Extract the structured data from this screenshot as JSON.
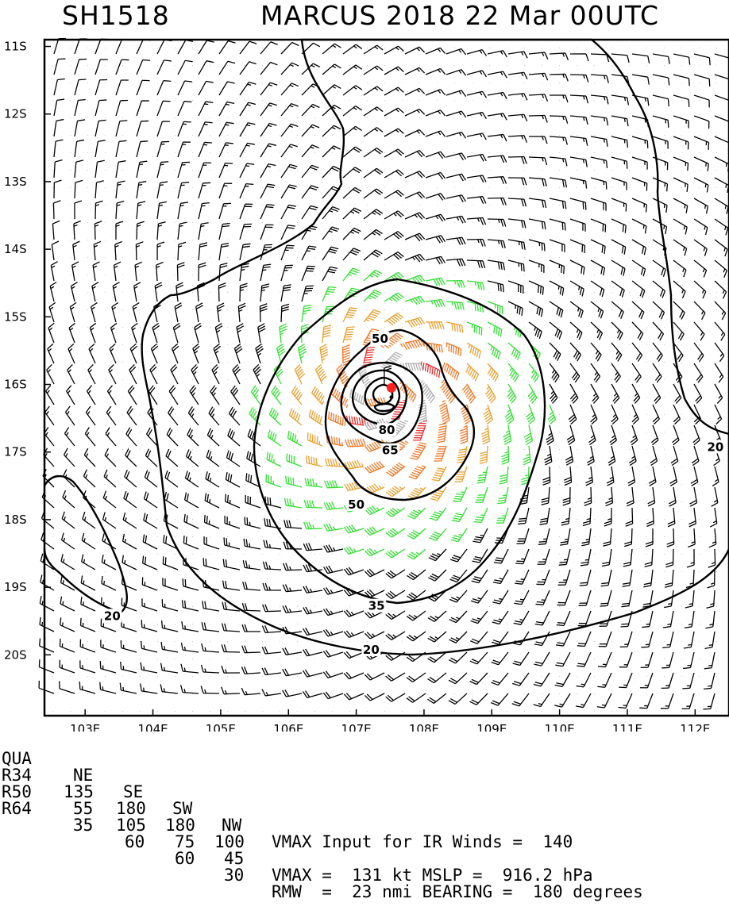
{
  "title": {
    "storm_id": "SH1518",
    "main": "MARCUS 2018 22 Mar 00UTC"
  },
  "map": {
    "lon_min": 102.4,
    "lon_max": 112.5,
    "lat_top": -10.9,
    "lat_bottom": -20.9,
    "lon_ticks": [
      "103E",
      "104E",
      "105E",
      "106E",
      "107E",
      "108E",
      "109E",
      "110E",
      "111E",
      "112E"
    ],
    "lat_ticks": [
      "11S",
      "12S",
      "13S",
      "14S",
      "15S",
      "16S",
      "17S",
      "18S",
      "19S",
      "20S"
    ],
    "center": {
      "lon": 107.52,
      "lat": -16.05
    },
    "center_marker_color": "#ff2020",
    "contour_labels": [
      {
        "text": "20",
        "lon": 112.3,
        "lat": -16.95
      },
      {
        "text": "20",
        "lon": 103.4,
        "lat": -19.45
      },
      {
        "text": "20",
        "lon": 107.22,
        "lat": -19.95
      },
      {
        "text": "35",
        "lon": 107.3,
        "lat": -19.3
      },
      {
        "text": "50",
        "lon": 107.35,
        "lat": -15.35
      },
      {
        "text": "50",
        "lon": 107.0,
        "lat": -17.8
      },
      {
        "text": "65",
        "lon": 107.5,
        "lat": -17.0
      },
      {
        "text": "80",
        "lon": 107.45,
        "lat": -16.7
      }
    ],
    "wind_colors": {
      "calm": "#000000",
      "ts": "#33dd33",
      "strong": "#e8a030",
      "hurricane": "#f07828",
      "major": "#e83030",
      "extreme": "#b0b0b0"
    }
  },
  "footer": {
    "headers": [
      "QUA",
      "NE",
      "SE",
      "SW",
      "NW"
    ],
    "rows": [
      {
        "label": "R34",
        "values": [
          "135",
          "180",
          "180",
          "100"
        ]
      },
      {
        "label": "R50",
        "values": [
          "55",
          "105",
          "75",
          "45"
        ]
      },
      {
        "label": "R64",
        "values": [
          "35",
          "60",
          "60",
          "30"
        ]
      }
    ],
    "info": [
      "VMAX Input for IR Winds =  140",
      "",
      "VMAX =  131 kt MSLP =  916.2 hPa",
      "RMW  =  23 nmi BEARING =  180 degrees"
    ]
  }
}
